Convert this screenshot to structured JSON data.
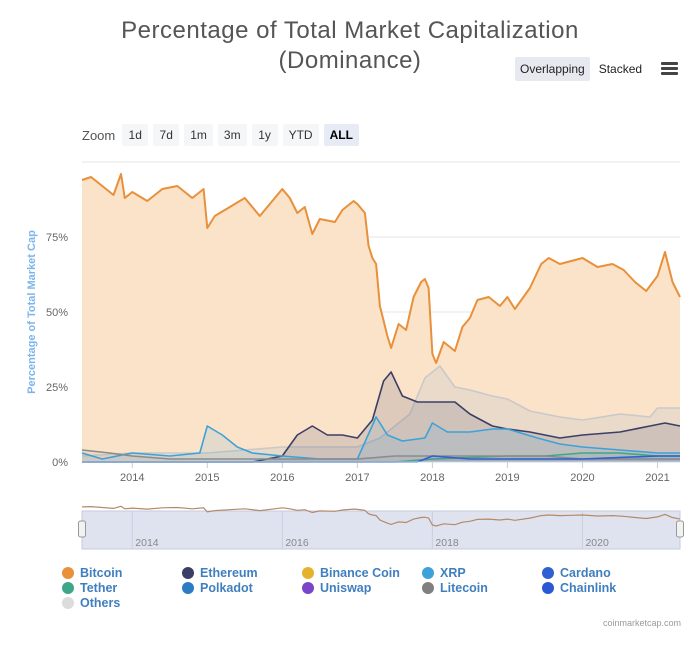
{
  "title_line1": "Percentage of Total Market Capitalization",
  "title_line2": "(Dominance)",
  "view_toggle": {
    "overlapping": "Overlapping",
    "stacked": "Stacked"
  },
  "zoom": {
    "label": "Zoom",
    "buttons": [
      "1d",
      "7d",
      "1m",
      "3m",
      "1y",
      "YTD",
      "ALL"
    ],
    "active": "ALL"
  },
  "credits": "coinmarketcap.com",
  "chart_data": {
    "type": "area",
    "title": "Percentage of Total Market Capitalization (Dominance)",
    "ylabel": "Percentage of Total Market Cap",
    "xlabel": "",
    "x_ticks": [
      "2014",
      "2015",
      "2016",
      "2017",
      "2018",
      "2019",
      "2020",
      "2021"
    ],
    "y_ticks": [
      "0%",
      "25%",
      "50%",
      "75%"
    ],
    "x_range": [
      2013.33,
      2021.3
    ],
    "ylim": [
      0,
      100
    ],
    "grid": true,
    "legend_position": "bottom",
    "navigator_ticks": [
      "2014",
      "2016",
      "2018",
      "2020"
    ],
    "series": [
      {
        "name": "Bitcoin",
        "color": "#e8903a",
        "fill": "#fbe3c9",
        "points": [
          [
            2013.33,
            94
          ],
          [
            2013.45,
            95
          ],
          [
            2013.6,
            92
          ],
          [
            2013.75,
            89
          ],
          [
            2013.85,
            96
          ],
          [
            2013.9,
            88
          ],
          [
            2014.0,
            90
          ],
          [
            2014.2,
            87
          ],
          [
            2014.4,
            91
          ],
          [
            2014.6,
            92
          ],
          [
            2014.8,
            88
          ],
          [
            2014.95,
            91
          ],
          [
            2015.0,
            78
          ],
          [
            2015.1,
            82
          ],
          [
            2015.3,
            85
          ],
          [
            2015.5,
            88
          ],
          [
            2015.7,
            82
          ],
          [
            2015.9,
            88
          ],
          [
            2016.0,
            91
          ],
          [
            2016.1,
            88
          ],
          [
            2016.2,
            83
          ],
          [
            2016.3,
            85
          ],
          [
            2016.4,
            76
          ],
          [
            2016.5,
            81
          ],
          [
            2016.7,
            80
          ],
          [
            2016.8,
            84
          ],
          [
            2016.95,
            87
          ],
          [
            2017.0,
            86
          ],
          [
            2017.1,
            83
          ],
          [
            2017.15,
            72
          ],
          [
            2017.2,
            68
          ],
          [
            2017.25,
            66
          ],
          [
            2017.3,
            52
          ],
          [
            2017.4,
            42
          ],
          [
            2017.45,
            38
          ],
          [
            2017.55,
            46
          ],
          [
            2017.65,
            44
          ],
          [
            2017.75,
            55
          ],
          [
            2017.85,
            60
          ],
          [
            2017.9,
            61
          ],
          [
            2017.95,
            58
          ],
          [
            2018.0,
            36
          ],
          [
            2018.05,
            33
          ],
          [
            2018.15,
            40
          ],
          [
            2018.3,
            37
          ],
          [
            2018.4,
            45
          ],
          [
            2018.5,
            48
          ],
          [
            2018.6,
            54
          ],
          [
            2018.75,
            55
          ],
          [
            2018.9,
            52
          ],
          [
            2019.0,
            55
          ],
          [
            2019.1,
            51
          ],
          [
            2019.3,
            58
          ],
          [
            2019.45,
            66
          ],
          [
            2019.55,
            68
          ],
          [
            2019.7,
            66
          ],
          [
            2019.85,
            67
          ],
          [
            2020.0,
            68
          ],
          [
            2020.2,
            65
          ],
          [
            2020.4,
            66
          ],
          [
            2020.55,
            64
          ],
          [
            2020.7,
            60
          ],
          [
            2020.85,
            57
          ],
          [
            2021.0,
            62
          ],
          [
            2021.1,
            70
          ],
          [
            2021.2,
            60
          ],
          [
            2021.3,
            55
          ]
        ]
      },
      {
        "name": "Others",
        "color": "#c9c9c9",
        "fill": "rgba(200,200,200,0.35)",
        "points": [
          [
            2013.33,
            2
          ],
          [
            2014.0,
            3
          ],
          [
            2015.0,
            3
          ],
          [
            2016.0,
            5
          ],
          [
            2017.0,
            5
          ],
          [
            2017.3,
            8
          ],
          [
            2017.5,
            12
          ],
          [
            2017.7,
            16
          ],
          [
            2017.9,
            28
          ],
          [
            2018.0,
            30
          ],
          [
            2018.1,
            32
          ],
          [
            2018.3,
            25
          ],
          [
            2018.5,
            24
          ],
          [
            2018.8,
            22
          ],
          [
            2019.0,
            21
          ],
          [
            2019.3,
            17
          ],
          [
            2019.7,
            15
          ],
          [
            2020.0,
            14
          ],
          [
            2020.5,
            16
          ],
          [
            2020.9,
            15
          ],
          [
            2021.0,
            18
          ],
          [
            2021.3,
            18
          ]
        ]
      },
      {
        "name": "Ethereum",
        "color": "#3b3f66",
        "fill": "rgba(60,60,110,0.15)",
        "points": [
          [
            2013.33,
            0
          ],
          [
            2015.6,
            0
          ],
          [
            2016.0,
            2
          ],
          [
            2016.2,
            9
          ],
          [
            2016.4,
            12
          ],
          [
            2016.6,
            9
          ],
          [
            2016.8,
            9
          ],
          [
            2017.0,
            8
          ],
          [
            2017.2,
            14
          ],
          [
            2017.35,
            27
          ],
          [
            2017.45,
            30
          ],
          [
            2017.6,
            22
          ],
          [
            2017.8,
            20
          ],
          [
            2018.0,
            20
          ],
          [
            2018.3,
            20
          ],
          [
            2018.5,
            16
          ],
          [
            2018.8,
            12
          ],
          [
            2019.0,
            11
          ],
          [
            2019.3,
            10
          ],
          [
            2019.7,
            8
          ],
          [
            2020.0,
            9
          ],
          [
            2020.5,
            10
          ],
          [
            2020.9,
            12
          ],
          [
            2021.1,
            13
          ],
          [
            2021.3,
            12
          ]
        ]
      },
      {
        "name": "XRP",
        "color": "#3ca2d9",
        "fill": "rgba(60,160,220,0.12)",
        "points": [
          [
            2013.33,
            3
          ],
          [
            2013.6,
            1
          ],
          [
            2014.0,
            3
          ],
          [
            2014.5,
            2
          ],
          [
            2014.9,
            3
          ],
          [
            2015.0,
            12
          ],
          [
            2015.2,
            9
          ],
          [
            2015.4,
            5
          ],
          [
            2015.6,
            3
          ],
          [
            2016.0,
            2
          ],
          [
            2016.5,
            1
          ],
          [
            2017.0,
            1
          ],
          [
            2017.25,
            15
          ],
          [
            2017.4,
            9
          ],
          [
            2017.6,
            7
          ],
          [
            2017.9,
            8
          ],
          [
            2018.0,
            13
          ],
          [
            2018.2,
            10
          ],
          [
            2018.5,
            10
          ],
          [
            2018.8,
            11
          ],
          [
            2019.0,
            11
          ],
          [
            2019.4,
            8
          ],
          [
            2019.7,
            6
          ],
          [
            2020.0,
            5
          ],
          [
            2020.5,
            4
          ],
          [
            2021.0,
            3
          ],
          [
            2021.3,
            3
          ]
        ]
      },
      {
        "name": "Tether",
        "color": "#3ea78a",
        "fill": "rgba(62,167,138,0.10)",
        "points": [
          [
            2013.33,
            0
          ],
          [
            2017.5,
            0
          ],
          [
            2018.0,
            1
          ],
          [
            2019.0,
            2
          ],
          [
            2019.5,
            2
          ],
          [
            2020.0,
            3
          ],
          [
            2020.5,
            3
          ],
          [
            2021.0,
            2
          ],
          [
            2021.3,
            2
          ]
        ]
      },
      {
        "name": "Litecoin",
        "color": "#8b8b8b",
        "fill": "rgba(140,140,140,0.10)",
        "points": [
          [
            2013.33,
            4
          ],
          [
            2013.7,
            3
          ],
          [
            2014.0,
            2
          ],
          [
            2014.5,
            1
          ],
          [
            2015.0,
            1
          ],
          [
            2016.0,
            1
          ],
          [
            2017.0,
            1
          ],
          [
            2017.5,
            2
          ],
          [
            2018.0,
            2
          ],
          [
            2018.5,
            2
          ],
          [
            2019.0,
            2
          ],
          [
            2019.5,
            2
          ],
          [
            2020.0,
            1
          ],
          [
            2021.3,
            1
          ]
        ]
      },
      {
        "name": "Cardano",
        "color": "#2f5fd1",
        "fill": "rgba(47,95,209,0.08)",
        "points": [
          [
            2013.33,
            0
          ],
          [
            2017.8,
            0
          ],
          [
            2018.0,
            2
          ],
          [
            2018.5,
            1
          ],
          [
            2019.0,
            1
          ],
          [
            2020.0,
            1
          ],
          [
            2021.0,
            2
          ],
          [
            2021.3,
            2
          ]
        ]
      }
    ],
    "legend": [
      {
        "name": "Bitcoin",
        "color": "#e8903a"
      },
      {
        "name": "Ethereum",
        "color": "#3b3f66"
      },
      {
        "name": "Binance Coin",
        "color": "#e5b22e"
      },
      {
        "name": "XRP",
        "color": "#3ca2d9"
      },
      {
        "name": "Cardano",
        "color": "#2f5fd1"
      },
      {
        "name": "Tether",
        "color": "#3ea78a"
      },
      {
        "name": "Polkadot",
        "color": "#2a7dc2"
      },
      {
        "name": "Uniswap",
        "color": "#7a45c9"
      },
      {
        "name": "Litecoin",
        "color": "#808080"
      },
      {
        "name": "Chainlink",
        "color": "#2b59d4"
      },
      {
        "name": "Others",
        "color": "#dcdcdc"
      }
    ]
  }
}
